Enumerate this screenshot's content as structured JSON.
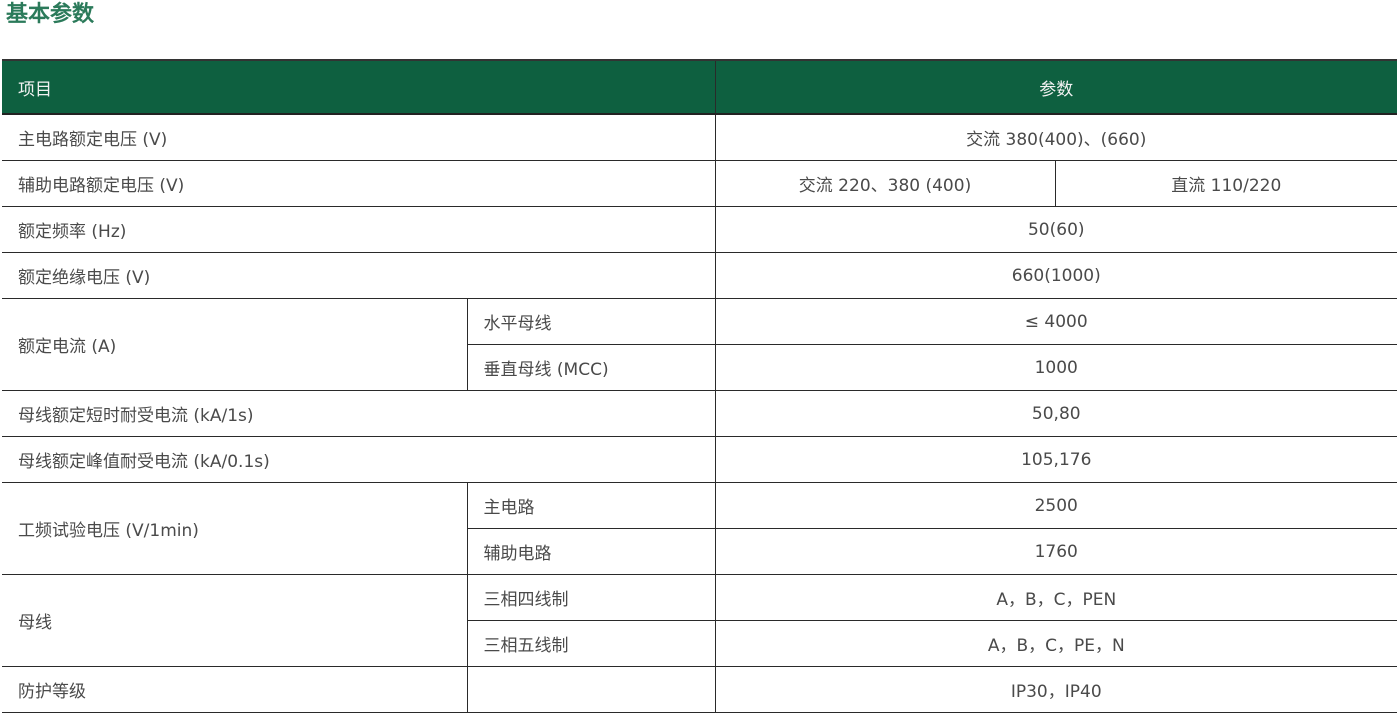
{
  "title": "基本参数",
  "header": {
    "item": "项目",
    "param": "参数"
  },
  "rows": {
    "r1": {
      "label": "主电路额定电压 (V)",
      "value": "交流 380(400)、(660)"
    },
    "r2": {
      "label": "辅助电路额定电压 (V)",
      "value_ac": "交流 220、380 (400)",
      "value_dc": "直流 110/220"
    },
    "r3": {
      "label": "额定频率 (Hz)",
      "value": "50(60)"
    },
    "r4": {
      "label": "额定绝缘电压 (V)",
      "value": "660(1000)"
    },
    "r5": {
      "label": "额定电流 (A)",
      "sub1": "水平母线",
      "val1": "≤ 4000",
      "sub2": "垂直母线 (MCC)",
      "val2": "1000"
    },
    "r6": {
      "label": "母线额定短时耐受电流 (kA/1s)",
      "value": "50,80"
    },
    "r7": {
      "label": "母线额定峰值耐受电流 (kA/0.1s)",
      "value": "105,176"
    },
    "r8": {
      "label": "工频试验电压 (V/1min)",
      "sub1": "主电路",
      "val1": "2500",
      "sub2": "辅助电路",
      "val2": "1760"
    },
    "r9": {
      "label": "母线",
      "sub1": "三相四线制",
      "val1": "A，B，C，PEN",
      "sub2": "三相五线制",
      "val2": "A，B，C，PE，N"
    },
    "r10": {
      "label": "防护等级",
      "value": "IP30，IP40"
    }
  },
  "colors": {
    "header_bg": "#0e6040",
    "title": "#2b7a5a",
    "text": "#4a4a4a"
  }
}
